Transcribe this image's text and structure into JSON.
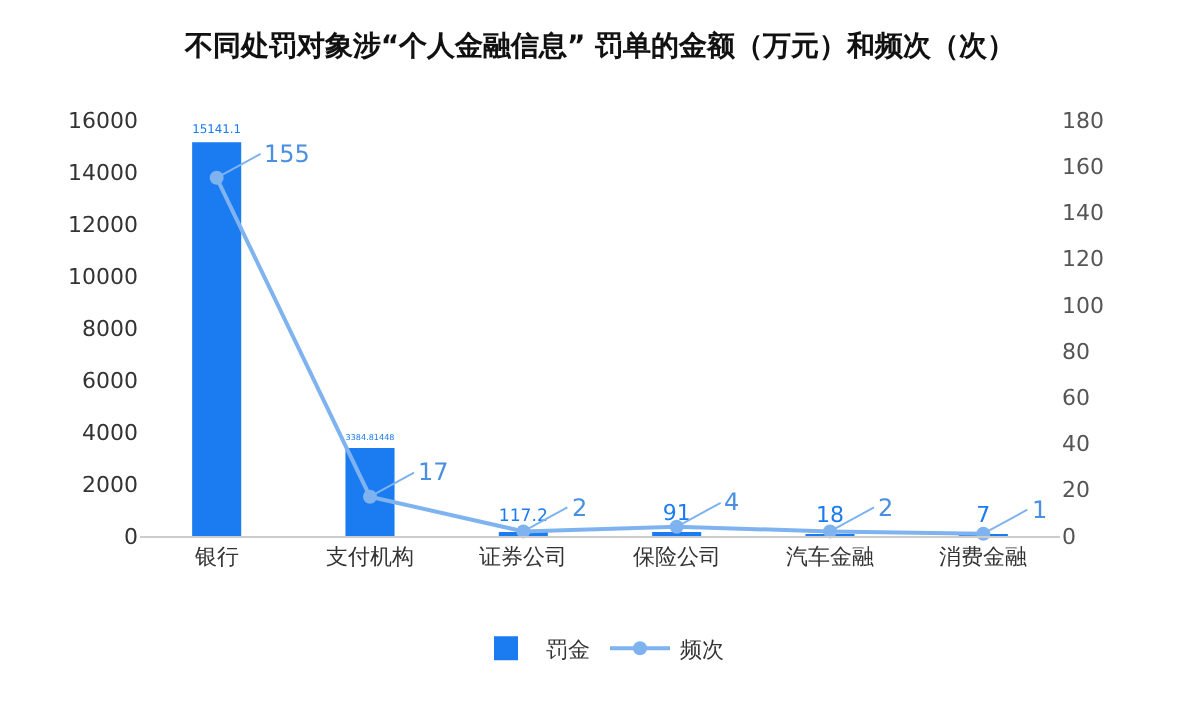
{
  "chart_data": {
    "type": "bar",
    "title": "不同处罚对象涉“个人金融信息” 罚单的金额（万元）和频次（次）",
    "categories": [
      "银行",
      "支付机构",
      "证券公司",
      "保险公司",
      "汽车金融",
      "消费金融"
    ],
    "series": [
      {
        "name": "罚金",
        "color": "#1a7cf0",
        "values": [
          15141.1,
          3384.81448,
          117.2,
          91,
          18,
          7
        ]
      },
      {
        "name": "频次",
        "color": "#7fb3f0",
        "type": "line",
        "axis": "y2",
        "marker": "circle",
        "values": [
          155,
          17,
          2,
          4,
          2,
          1
        ]
      }
    ],
    "ylim": [
      0,
      16000
    ],
    "yticks": [
      0,
      2000,
      4000,
      6000,
      8000,
      10000,
      12000,
      14000,
      16000
    ],
    "y2lim": [
      0,
      180
    ],
    "y2ticks": [
      0,
      20,
      40,
      60,
      80,
      100,
      120,
      140,
      160,
      180
    ],
    "data_labels": true,
    "legend": "bottom"
  }
}
